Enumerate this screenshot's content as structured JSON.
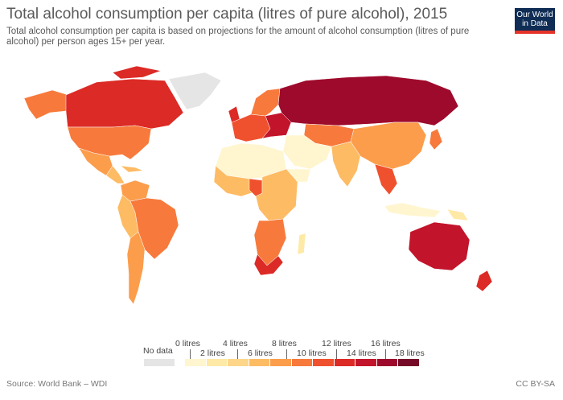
{
  "header": {
    "title": "Total alcohol consumption per capita (litres of pure alcohol), 2015",
    "subtitle": "Total alcohol consumption per capita is based on projections for the amount of alcohol consumption (litres of pure alcohol) per person ages 15+ per year."
  },
  "logo": {
    "line1": "Our World",
    "line2": "in Data"
  },
  "legend": {
    "no_data_label": "No data",
    "upper_labels": [
      "0 litres",
      "4 litres",
      "8 litres",
      "12 litres",
      "16 litres"
    ],
    "lower_labels": [
      "2 litres",
      "6 litres",
      "10 litres",
      "14 litres",
      "18 litres"
    ],
    "colors": [
      "#fff5cf",
      "#fee9a6",
      "#fdd68a",
      "#fdbb64",
      "#fc9d4c",
      "#f77a3c",
      "#ef512e",
      "#dc2a26",
      "#c2142a",
      "#9e0a2c",
      "#750b27"
    ],
    "no_data_color": "#e5e5e5"
  },
  "footer": {
    "source": "Source: World Bank – WDI",
    "license": "CC BY-SA"
  }
}
